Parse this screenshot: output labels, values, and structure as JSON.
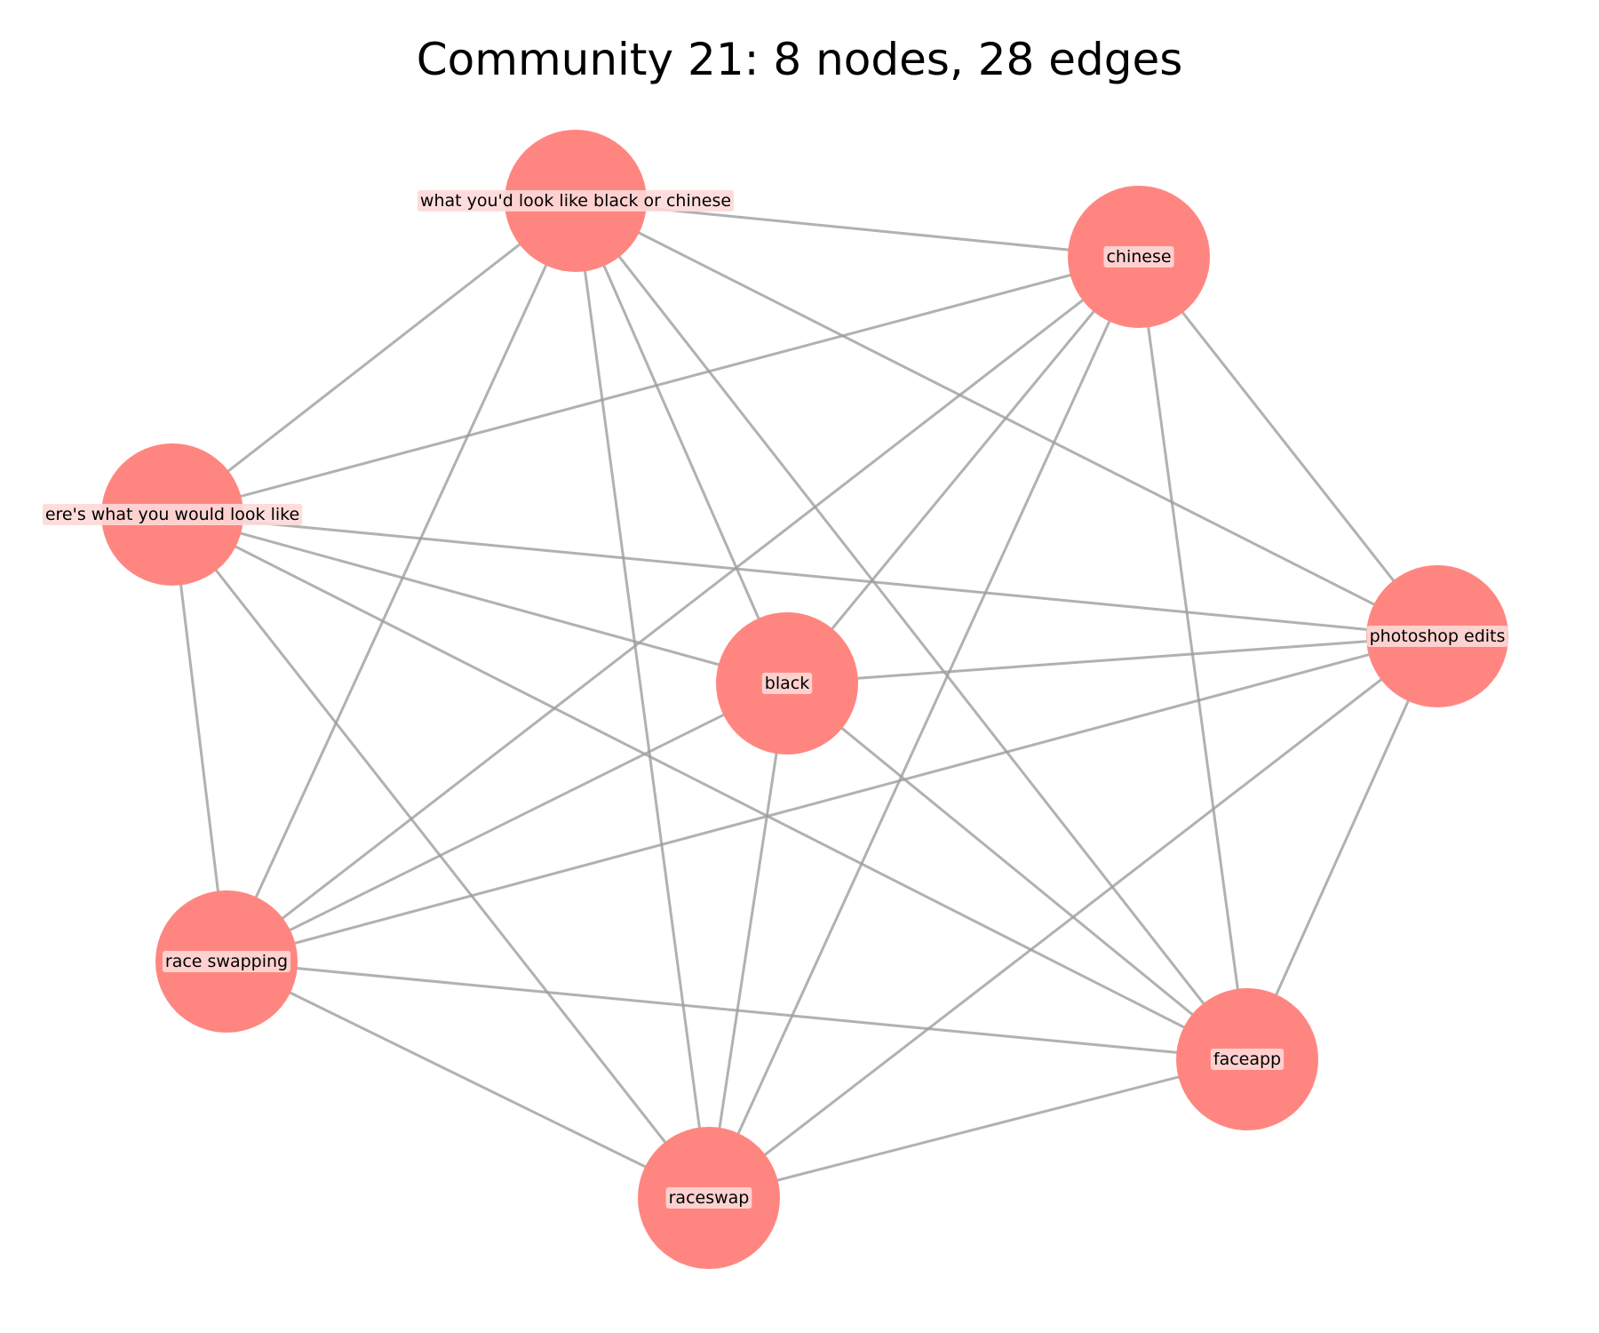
{
  "title": "Community 21: 8 nodes, 28 edges",
  "colors": {
    "node": "#ff8680",
    "edge": "#9e9e9e",
    "label_bg": "#fdd9d7"
  },
  "nodes": [
    {
      "id": "n1",
      "label": "what you'd look like black or chinese"
    },
    {
      "id": "n2",
      "label": "chinese"
    },
    {
      "id": "n3",
      "label": "ere's what you would look like"
    },
    {
      "id": "n4",
      "label": "photoshop edits"
    },
    {
      "id": "n5",
      "label": "black"
    },
    {
      "id": "n6",
      "label": "race swapping"
    },
    {
      "id": "n7",
      "label": "faceapp"
    },
    {
      "id": "n8",
      "label": "raceswap"
    }
  ],
  "edges": [
    [
      "n1",
      "n2"
    ],
    [
      "n1",
      "n3"
    ],
    [
      "n1",
      "n4"
    ],
    [
      "n1",
      "n5"
    ],
    [
      "n1",
      "n6"
    ],
    [
      "n1",
      "n7"
    ],
    [
      "n1",
      "n8"
    ],
    [
      "n2",
      "n3"
    ],
    [
      "n2",
      "n4"
    ],
    [
      "n2",
      "n5"
    ],
    [
      "n2",
      "n6"
    ],
    [
      "n2",
      "n7"
    ],
    [
      "n2",
      "n8"
    ],
    [
      "n3",
      "n4"
    ],
    [
      "n3",
      "n5"
    ],
    [
      "n3",
      "n6"
    ],
    [
      "n3",
      "n7"
    ],
    [
      "n3",
      "n8"
    ],
    [
      "n4",
      "n5"
    ],
    [
      "n4",
      "n6"
    ],
    [
      "n4",
      "n7"
    ],
    [
      "n4",
      "n8"
    ],
    [
      "n5",
      "n6"
    ],
    [
      "n5",
      "n7"
    ],
    [
      "n5",
      "n8"
    ],
    [
      "n6",
      "n7"
    ],
    [
      "n6",
      "n8"
    ],
    [
      "n7",
      "n8"
    ]
  ]
}
